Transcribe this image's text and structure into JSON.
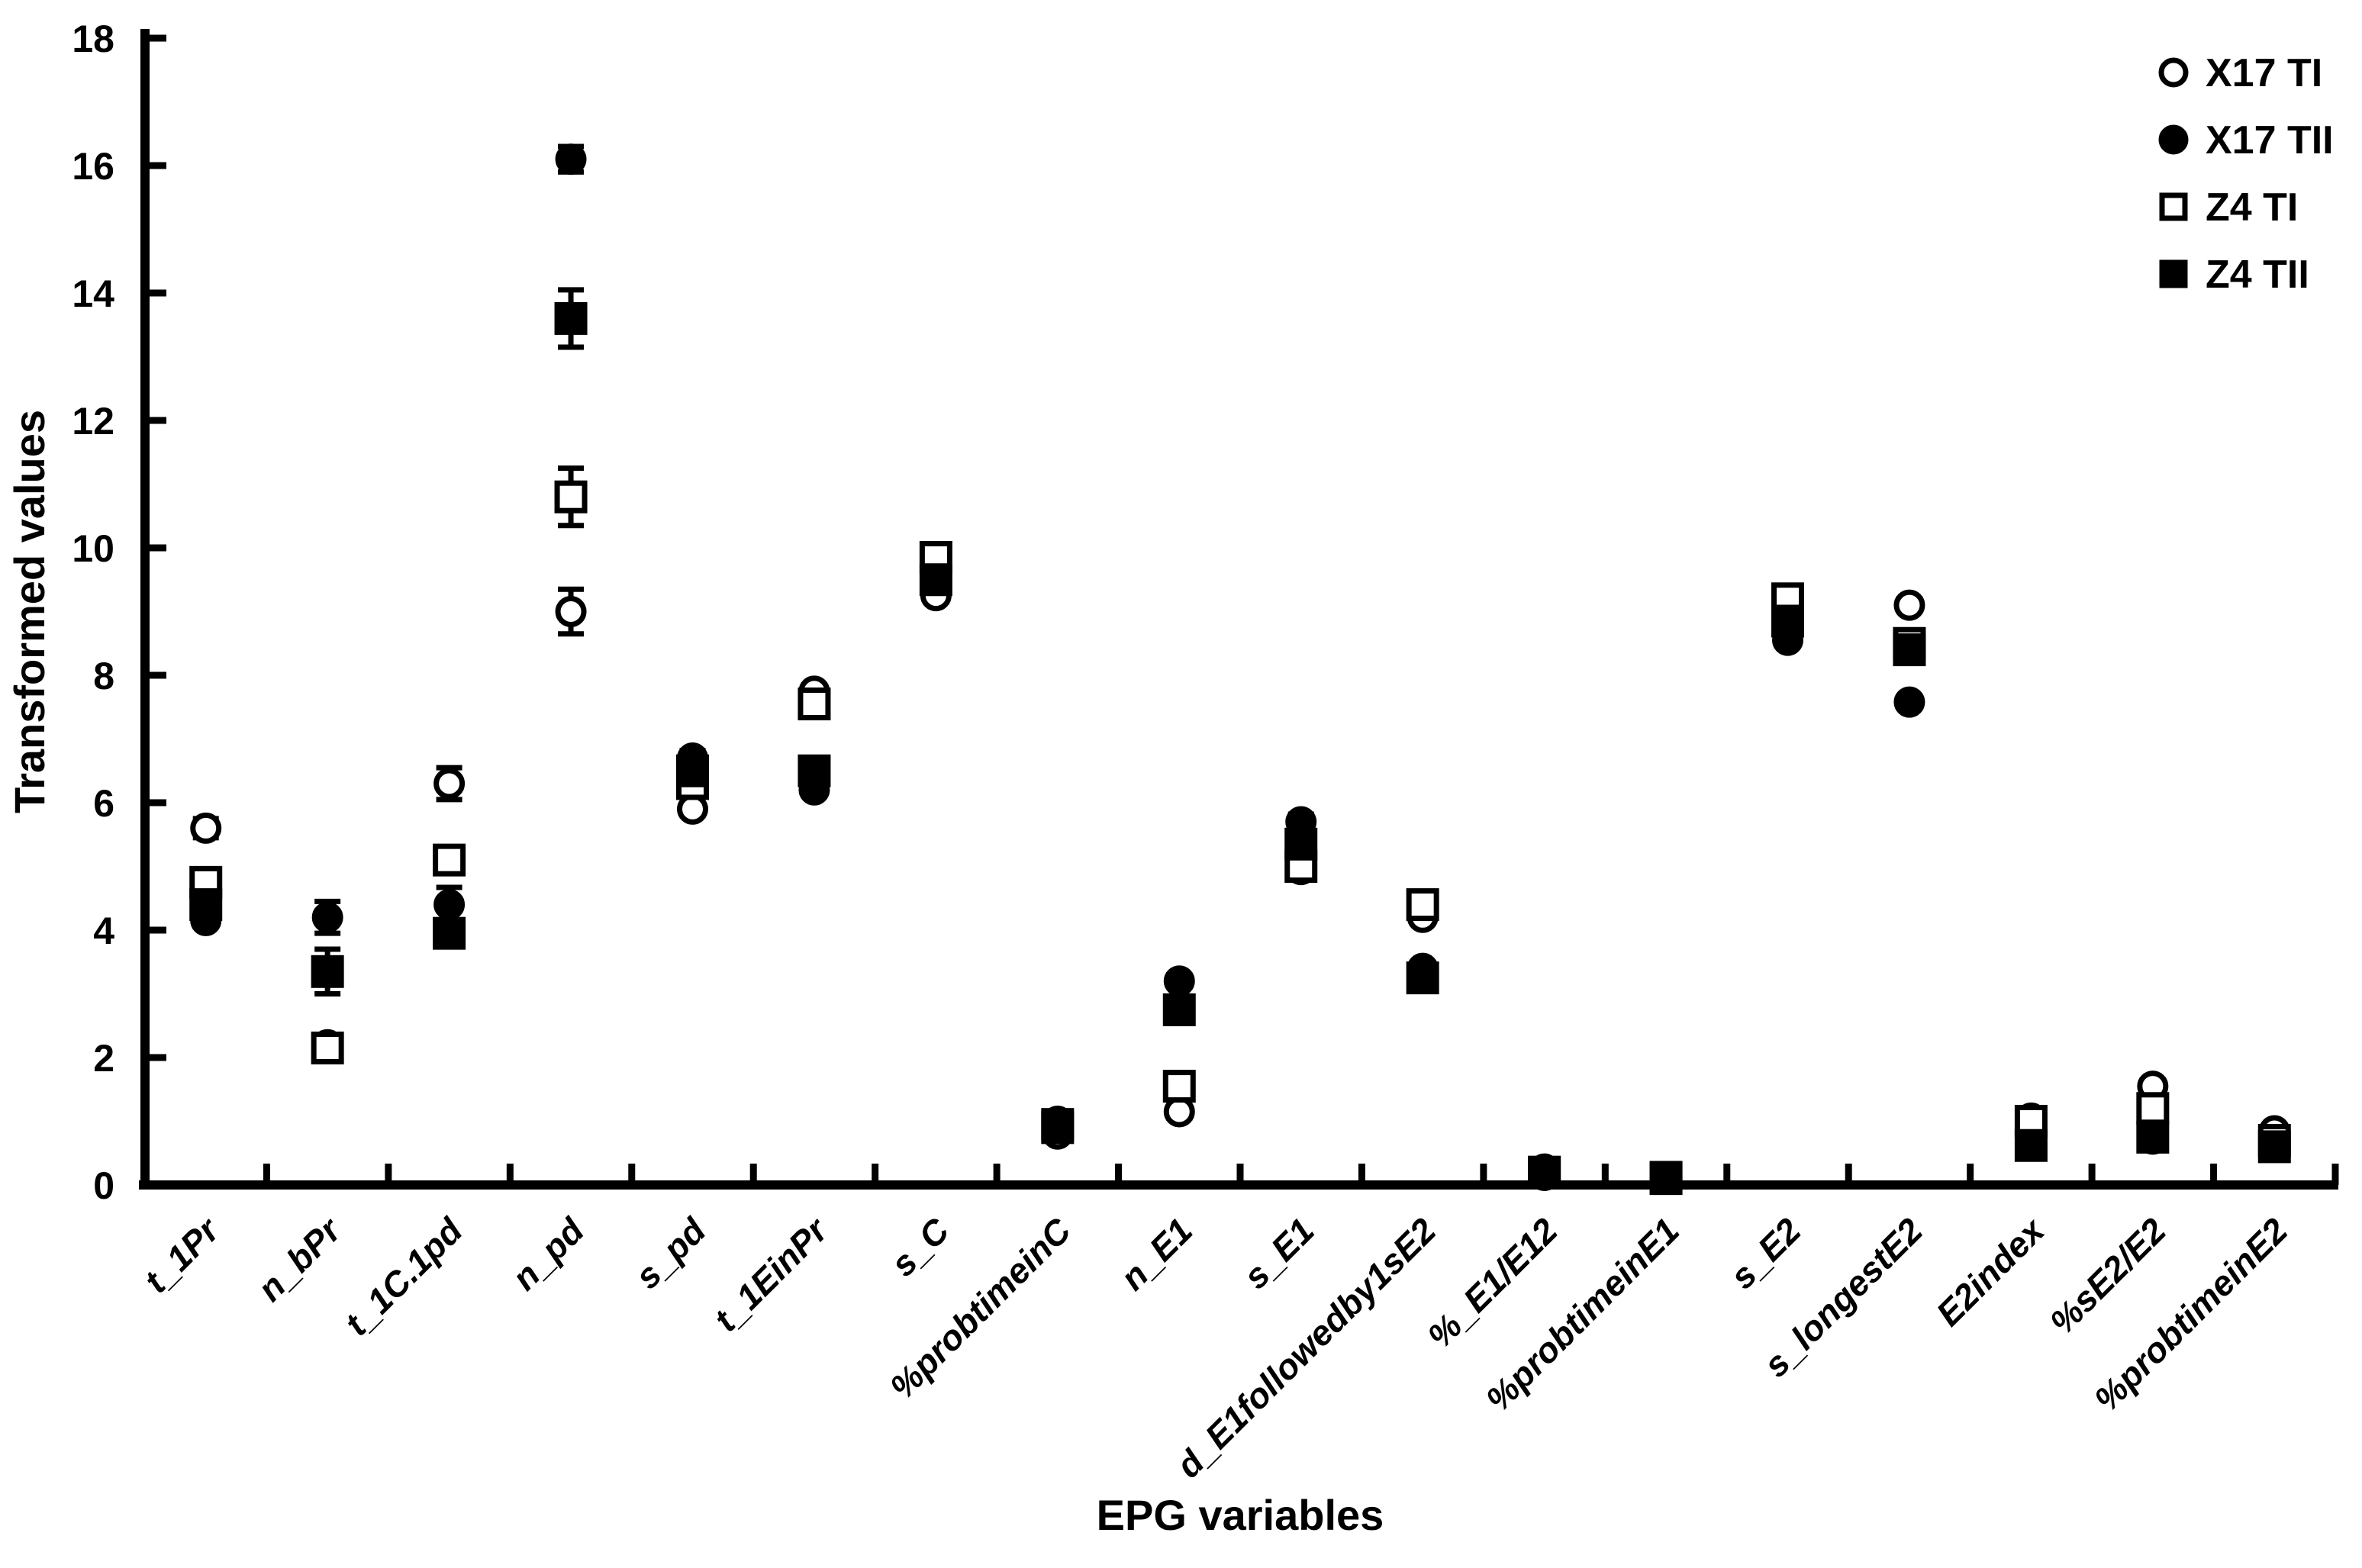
{
  "figure": {
    "background": "#ffffff",
    "ink": "#000000"
  },
  "chart_data": {
    "type": "scatter",
    "title": "",
    "xlabel": "EPG variables",
    "ylabel": "Transformed values",
    "ylim": [
      0,
      18
    ],
    "yticks": [
      0,
      2,
      4,
      6,
      8,
      10,
      12,
      14,
      16,
      18
    ],
    "grid": false,
    "legend_position": "top-right",
    "categories": [
      "t_1Pr",
      "n_bPr",
      "t_1C.1pd",
      "n_pd",
      "s_pd",
      "t_1EinPr",
      "s_C",
      "%probtimeinC",
      "n_E1",
      "s_E1",
      "d_E1followedby1sE2",
      "%_E1/E12",
      "%probtimeinE1",
      "s_E2",
      "s_longestE2",
      "E2index",
      "%sE2/E2",
      "%probtimeinE2"
    ],
    "series": [
      {
        "name": "X17 TI",
        "marker": "circle",
        "fill": "open",
        "values": [
          {
            "v": 5.6,
            "e": 0.15
          },
          {
            "v": 2.2,
            "e": 0.1
          },
          {
            "v": 6.3,
            "e": 0.25
          },
          {
            "v": 9.0,
            "e": 0.35
          },
          {
            "v": 5.9,
            "e": 0.1
          },
          {
            "v": 7.75,
            "e": 0.1
          },
          {
            "v": 9.25,
            "e": 0.1
          },
          {
            "v": 0.8,
            "e": 0.1
          },
          {
            "v": 1.15,
            "e": 0.1
          },
          {
            "v": 4.95,
            "e": 0.1
          },
          {
            "v": 4.2,
            "e": 0.1
          },
          {
            "v": 0.15,
            "e": 0.05
          },
          {
            "v": 0.1,
            "e": 0.04
          },
          {
            "v": 9.05,
            "e": 0.12
          },
          {
            "v": 9.1,
            "e": 0.1
          },
          {
            "v": 1.05,
            "e": 0.1
          },
          {
            "v": 1.55,
            "e": 0.1
          },
          {
            "v": 0.85,
            "e": 0.08
          }
        ]
      },
      {
        "name": "X17 TII",
        "marker": "circle",
        "fill": "filled",
        "values": [
          {
            "v": 4.15,
            "e": 0.1
          },
          {
            "v": 4.2,
            "e": 0.25
          },
          {
            "v": 4.4,
            "e": 0.27
          },
          {
            "v": 16.1,
            "e": 0.2
          },
          {
            "v": 6.7,
            "e": 0.12
          },
          {
            "v": 6.2,
            "e": 0.1
          },
          {
            "v": 9.6,
            "e": 0.1
          },
          {
            "v": 1.0,
            "e": 0.08
          },
          {
            "v": 3.2,
            "e": 0.1
          },
          {
            "v": 5.7,
            "e": 0.12
          },
          {
            "v": 3.4,
            "e": 0.08
          },
          {
            "v": 0.25,
            "e": 0.06
          },
          {
            "v": 0.1,
            "e": 0.04
          },
          {
            "v": 8.55,
            "e": 0.1
          },
          {
            "v": 7.58,
            "e": 0.08
          },
          {
            "v": 0.7,
            "e": 0.08
          },
          {
            "v": 0.72,
            "e": 0.06
          },
          {
            "v": 0.65,
            "e": 0.06
          }
        ]
      },
      {
        "name": "Z4 TI",
        "marker": "square",
        "fill": "open",
        "values": [
          {
            "v": 4.75,
            "e": 0.12
          },
          {
            "v": 2.15,
            "e": 0.1
          },
          {
            "v": 5.1,
            "e": 0.2
          },
          {
            "v": 10.8,
            "e": 0.45
          },
          {
            "v": 6.3,
            "e": 0.1
          },
          {
            "v": 7.55,
            "e": 0.1
          },
          {
            "v": 9.85,
            "e": 0.1
          },
          {
            "v": 0.95,
            "e": 0.08
          },
          {
            "v": 1.55,
            "e": 0.15
          },
          {
            "v": 5.0,
            "e": 0.1
          },
          {
            "v": 4.4,
            "e": 0.1
          },
          {
            "v": 0.2,
            "e": 0.05
          },
          {
            "v": 0.1,
            "e": 0.04
          },
          {
            "v": 9.2,
            "e": 0.12
          },
          {
            "v": 8.5,
            "e": 0.12
          },
          {
            "v": 1.0,
            "e": 0.1
          },
          {
            "v": 1.2,
            "e": 0.15
          },
          {
            "v": 0.7,
            "e": 0.06
          }
        ]
      },
      {
        "name": "Z4 TII",
        "marker": "square",
        "fill": "filled",
        "values": [
          {
            "v": 4.4,
            "e": 0.1
          },
          {
            "v": 3.35,
            "e": 0.35
          },
          {
            "v": 3.95,
            "e": 0.12
          },
          {
            "v": 13.6,
            "e": 0.45
          },
          {
            "v": 6.5,
            "e": 0.1
          },
          {
            "v": 6.5,
            "e": 0.1
          },
          {
            "v": 9.5,
            "e": 0.1
          },
          {
            "v": 0.9,
            "e": 0.08
          },
          {
            "v": 2.75,
            "e": 0.2
          },
          {
            "v": 5.35,
            "e": 0.1
          },
          {
            "v": 3.25,
            "e": 0.1
          },
          {
            "v": 0.2,
            "e": 0.05
          },
          {
            "v": 0.12,
            "e": 0.04
          },
          {
            "v": 8.85,
            "e": 0.1
          },
          {
            "v": 8.4,
            "e": 0.1
          },
          {
            "v": 0.62,
            "e": 0.08
          },
          {
            "v": 0.75,
            "e": 0.1
          },
          {
            "v": 0.6,
            "e": 0.06
          }
        ]
      }
    ]
  }
}
